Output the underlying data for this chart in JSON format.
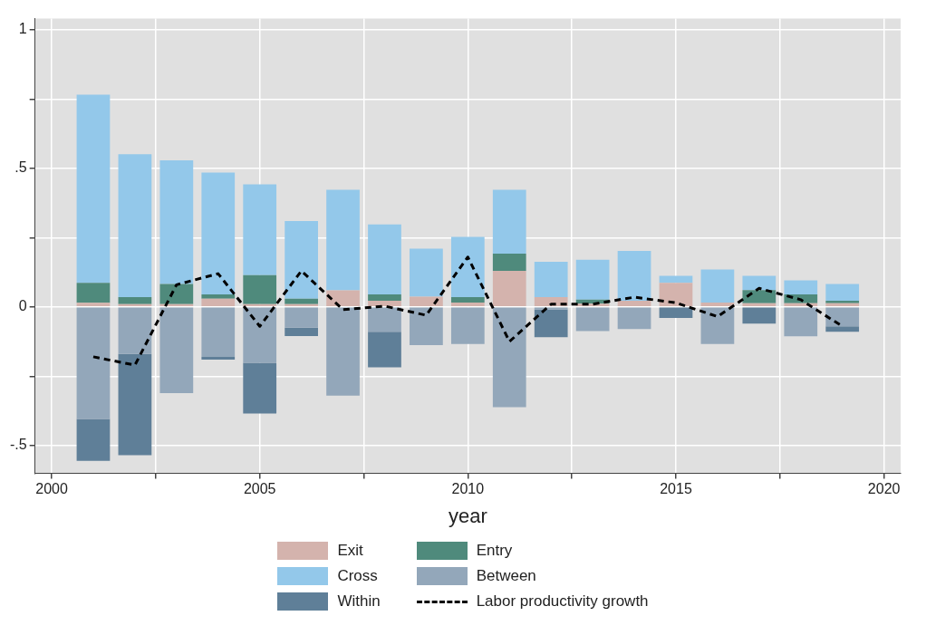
{
  "chart_data": {
    "type": "bar",
    "stacked": true,
    "xlabel": "year",
    "x": [
      2001,
      2002,
      2003,
      2004,
      2005,
      2006,
      2007,
      2008,
      2009,
      2010,
      2011,
      2012,
      2013,
      2014,
      2015,
      2016,
      2017,
      2018,
      2019
    ],
    "series": [
      {
        "name": "Exit",
        "color": "#d4b3ad",
        "values": [
          0.015,
          0.01,
          0.01,
          0.03,
          0.01,
          0.01,
          0.06,
          0.022,
          0.037,
          0.016,
          0.13,
          0.035,
          0.012,
          0.022,
          0.087,
          0.016,
          0.013,
          0.013,
          0.013
        ]
      },
      {
        "name": "Entry",
        "color": "#4f8a7c",
        "values": [
          0.072,
          0.025,
          0.073,
          0.015,
          0.105,
          0.02,
          0,
          0.023,
          0,
          0.019,
          0.062,
          0,
          0.014,
          0,
          0,
          0,
          0.048,
          0.032,
          0.009
        ]
      },
      {
        "name": "Cross",
        "color": "#93c8ea",
        "values": [
          0.679,
          0.516,
          0.446,
          0.44,
          0.327,
          0.28,
          0.363,
          0.253,
          0.173,
          0.218,
          0.231,
          0.128,
          0.144,
          0.18,
          0.025,
          0.119,
          0.051,
          0.051,
          0.061
        ]
      },
      {
        "name": "Between",
        "color": "#93a7ba",
        "values": [
          -0.404,
          -0.17,
          -0.311,
          -0.18,
          -0.202,
          -0.075,
          -0.32,
          -0.09,
          -0.138,
          -0.134,
          -0.362,
          -0.01,
          -0.087,
          -0.08,
          0,
          -0.134,
          0,
          -0.106,
          -0.07
        ]
      },
      {
        "name": "Within",
        "color": "#5f7f98",
        "values": [
          -0.151,
          -0.365,
          0,
          -0.01,
          -0.183,
          -0.03,
          0,
          -0.128,
          0,
          0,
          0,
          -0.099,
          0,
          0,
          -0.04,
          0,
          -0.06,
          0,
          -0.02
        ]
      },
      {
        "name": "Labor productivity growth",
        "type": "line",
        "color": "#000000",
        "line_style": "dashed",
        "marker": "none",
        "values": [
          -0.18,
          -0.21,
          0.08,
          0.12,
          -0.07,
          0.13,
          -0.01,
          0.003,
          -0.03,
          0.18,
          -0.125,
          0.01,
          0.01,
          0.035,
          0.015,
          -0.035,
          0.067,
          0.026,
          -0.07
        ]
      }
    ],
    "xlim": [
      1999.6,
      2020.4
    ],
    "xticks": [
      2000,
      {
        "value": 2002.5,
        "label": null
      },
      2005,
      {
        "value": 2007.5,
        "label": null
      },
      2010,
      {
        "value": 2012.5,
        "label": null
      },
      2015,
      {
        "value": 2017.5,
        "label": null
      },
      2020
    ],
    "ylim": [
      -0.6,
      1.04
    ],
    "yticks": [
      {
        "value": -0.5,
        "label": "-.5"
      },
      {
        "value": -0.25,
        "label": null
      },
      0,
      {
        "value": 0.25,
        "label": null
      },
      {
        "value": 0.5,
        "label": ".5"
      },
      {
        "value": 0.75,
        "label": null
      },
      1
    ],
    "grid": true,
    "legend": "bottom"
  }
}
